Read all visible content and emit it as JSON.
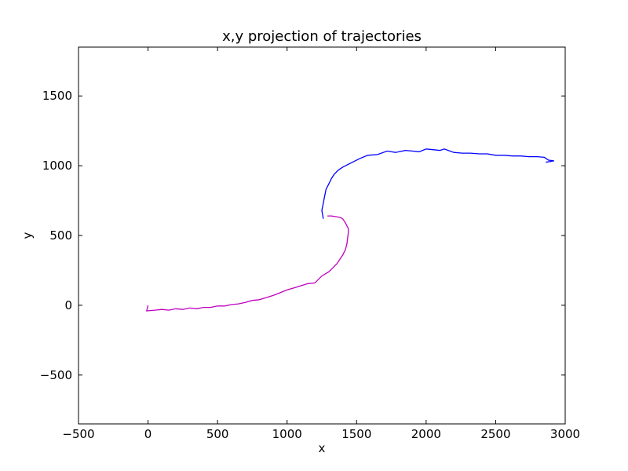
{
  "chart_data": {
    "type": "line",
    "title": "x,y projection of trajectories",
    "xlabel": "x",
    "ylabel": "y",
    "xlim": [
      -500,
      3000
    ],
    "ylim": [
      -850,
      1850
    ],
    "grid": false,
    "x_ticks": [
      -500,
      0,
      500,
      1000,
      1500,
      2000,
      2500,
      3000
    ],
    "x_tick_labels": [
      "−500",
      "0",
      "500",
      "1000",
      "1500",
      "2000",
      "2500",
      "3000"
    ],
    "y_ticks": [
      -500,
      0,
      500,
      1000,
      1500
    ],
    "y_tick_labels": [
      "−500",
      "0",
      "500",
      "1000",
      "1500"
    ],
    "series": [
      {
        "color": "#bf00bf",
        "x": [
          0,
          -10,
          50,
          100,
          150,
          200,
          250,
          300,
          350,
          400,
          450,
          500,
          550,
          600,
          650,
          700,
          750,
          800,
          850,
          900,
          950,
          1000,
          1050,
          1100,
          1150,
          1200,
          1250,
          1300,
          1330,
          1360,
          1380,
          1400,
          1420,
          1430,
          1435,
          1440,
          1440,
          1420,
          1400,
          1380,
          1350,
          1320,
          1290
        ],
        "y": [
          0,
          -40,
          -35,
          -30,
          -35,
          -25,
          -30,
          -20,
          -25,
          -15,
          -15,
          -5,
          -5,
          5,
          10,
          20,
          35,
          40,
          55,
          70,
          90,
          110,
          125,
          140,
          155,
          160,
          210,
          240,
          270,
          300,
          330,
          360,
          400,
          440,
          480,
          520,
          550,
          590,
          620,
          630,
          635,
          640,
          640
        ]
      },
      {
        "color": "#0000ff",
        "x": [
          1260,
          1250,
          1260,
          1270,
          1280,
          1300,
          1320,
          1340,
          1370,
          1400,
          1440,
          1480,
          1520,
          1580,
          1650,
          1720,
          1780,
          1850,
          1900,
          1950,
          2000,
          2050,
          2100,
          2130,
          2200,
          2260,
          2320,
          2380,
          2440,
          2500,
          2560,
          2620,
          2680,
          2740,
          2800,
          2850,
          2880,
          2920,
          2860
        ],
        "y": [
          620,
          680,
          730,
          780,
          830,
          870,
          910,
          940,
          970,
          990,
          1010,
          1030,
          1050,
          1075,
          1080,
          1105,
          1095,
          1110,
          1105,
          1100,
          1120,
          1115,
          1110,
          1120,
          1095,
          1090,
          1090,
          1085,
          1085,
          1075,
          1075,
          1070,
          1070,
          1065,
          1065,
          1060,
          1040,
          1035,
          1025
        ]
      }
    ]
  }
}
